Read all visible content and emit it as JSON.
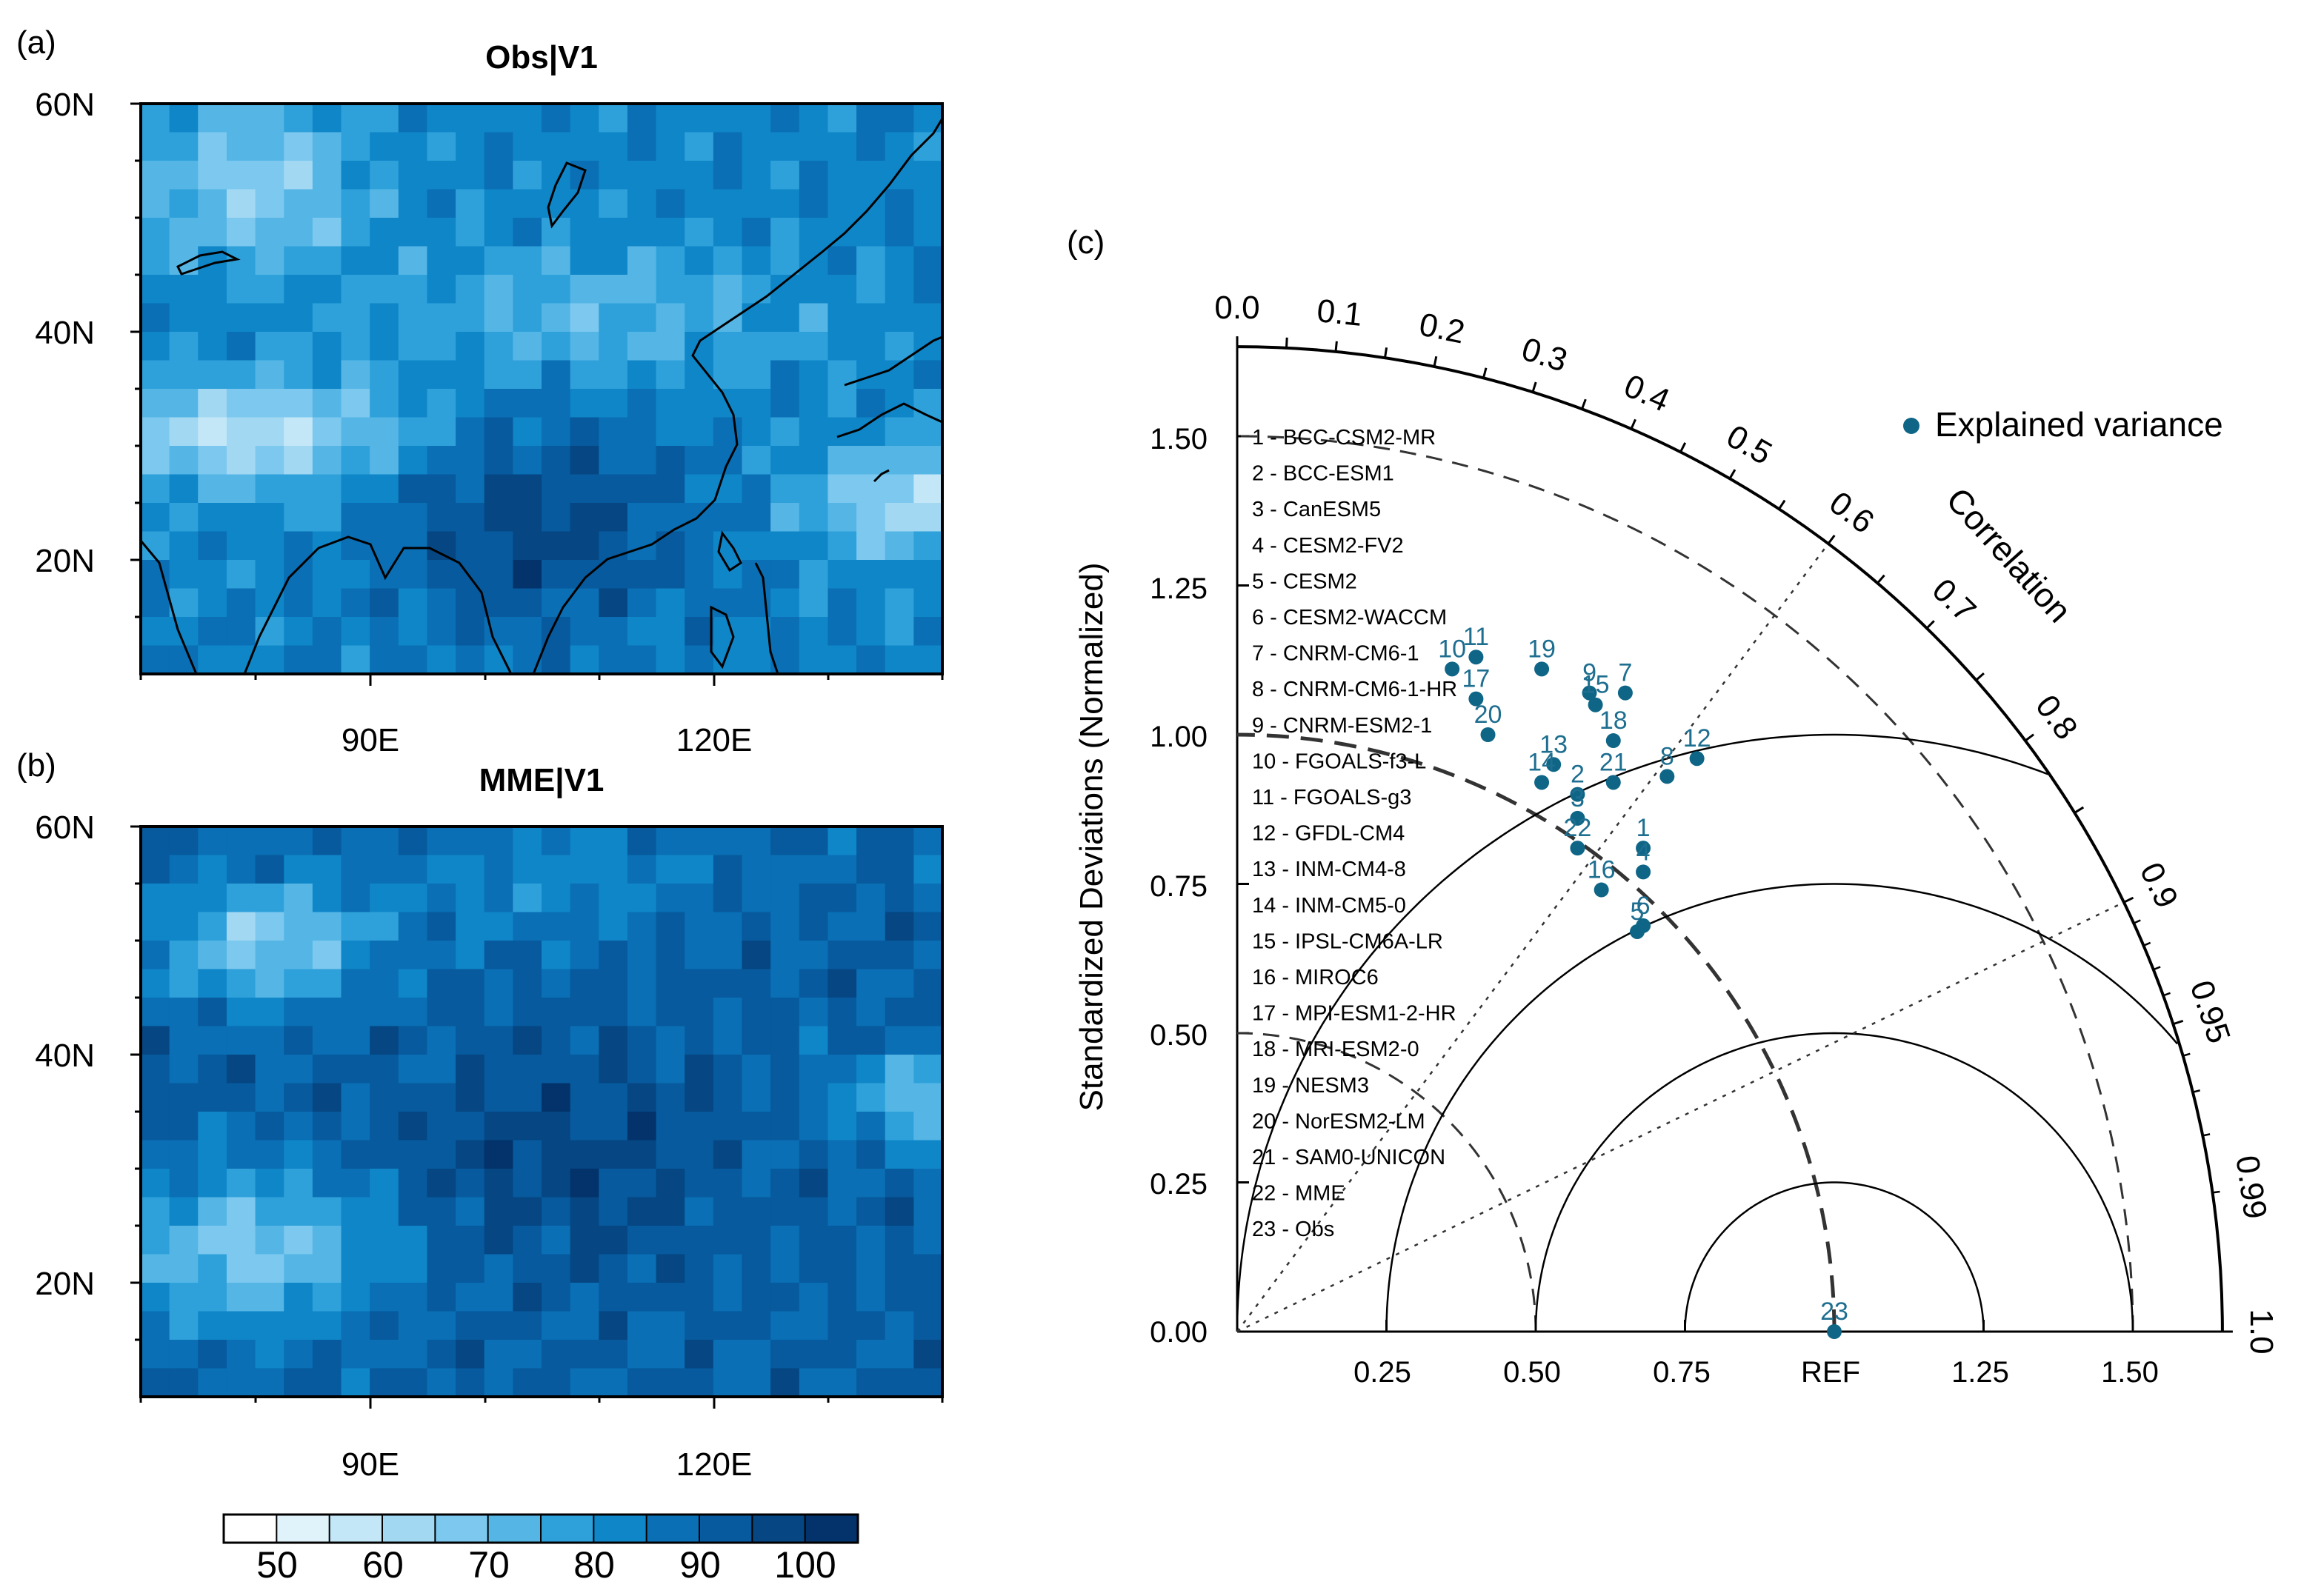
{
  "panels": {
    "a": {
      "label": "(a)",
      "title": "Obs|V1"
    },
    "b": {
      "label": "(b)",
      "title": "MME|V1"
    },
    "c": {
      "label": "(c)"
    }
  },
  "map_axes": {
    "lat_ticks": [
      "60N",
      "40N",
      "20N"
    ],
    "lon_ticks": [
      "90E",
      "120E"
    ]
  },
  "colorbar": {
    "labels": [
      "50",
      "60",
      "70",
      "80",
      "90",
      "100"
    ],
    "colors": [
      "#ffffff",
      "#e0f3fb",
      "#c3e7f7",
      "#a3d8f3",
      "#7cc8ef",
      "#55b6e6",
      "#2ea1da",
      "#0f86c8",
      "#0a6fb4",
      "#075a9d",
      "#054683",
      "#03336a"
    ]
  },
  "chart_data": {
    "type": "scatter",
    "subtype": "taylor-diagram",
    "ylabel": "Standardized Deviations (Normalized)",
    "correlation_label": "Correlation",
    "legend": {
      "label": "Explained variance",
      "color": "#0e6586",
      "position": "top-right"
    },
    "x_tick_labels": [
      "0.25",
      "0.50",
      "0.75",
      "REF",
      "1.25",
      "1.50"
    ],
    "y_tick_labels": [
      "0.00",
      "0.25",
      "0.50",
      "0.75",
      "1.00",
      "1.25",
      "1.50"
    ],
    "std_max": 1.65,
    "correlation_ticks": [
      "0.0",
      "0.1",
      "0.2",
      "0.3",
      "0.4",
      "0.5",
      "0.6",
      "0.7",
      "0.8",
      "0.9",
      "0.95",
      "0.99",
      "1.0"
    ],
    "models": [
      "1 - BCC-CSM2-MR",
      "2 - BCC-ESM1",
      "3 - CanESM5",
      "4 - CESM2-FV2",
      "5 - CESM2",
      "6 - CESM2-WACCM",
      "7 - CNRM-CM6-1",
      "8 - CNRM-CM6-1-HR",
      "9 - CNRM-ESM2-1",
      "10 - FGOALS-f3-L",
      "11 - FGOALS-g3",
      "12 - GFDL-CM4",
      "13 - INM-CM4-8",
      "14 - INM-CM5-0",
      "15 - IPSL-CM6A-LR",
      "16 - MIROC6",
      "17 - MPI-ESM1-2-HR",
      "18 - MRI-ESM2-0",
      "19 - NESM3",
      "20 - NorESM2-LM",
      "21 - SAM0-UNICON",
      "22 - MME",
      "23 - Obs"
    ],
    "points": [
      {
        "id": "1",
        "x": 0.68,
        "y": 0.81
      },
      {
        "id": "2",
        "x": 0.57,
        "y": 0.9
      },
      {
        "id": "3",
        "x": 0.57,
        "y": 0.86
      },
      {
        "id": "4",
        "x": 0.68,
        "y": 0.77
      },
      {
        "id": "5",
        "x": 0.67,
        "y": 0.67
      },
      {
        "id": "6",
        "x": 0.68,
        "y": 0.68
      },
      {
        "id": "7",
        "x": 0.65,
        "y": 1.07
      },
      {
        "id": "8",
        "x": 0.72,
        "y": 0.93
      },
      {
        "id": "9",
        "x": 0.59,
        "y": 1.07
      },
      {
        "id": "10",
        "x": 0.36,
        "y": 1.11
      },
      {
        "id": "11",
        "x": 0.4,
        "y": 1.13
      },
      {
        "id": "12",
        "x": 0.77,
        "y": 0.96
      },
      {
        "id": "13",
        "x": 0.53,
        "y": 0.95
      },
      {
        "id": "14",
        "x": 0.51,
        "y": 0.92
      },
      {
        "id": "15",
        "x": 0.6,
        "y": 1.05
      },
      {
        "id": "16",
        "x": 0.61,
        "y": 0.74
      },
      {
        "id": "17",
        "x": 0.4,
        "y": 1.06
      },
      {
        "id": "18",
        "x": 0.63,
        "y": 0.99
      },
      {
        "id": "19",
        "x": 0.51,
        "y": 1.11
      },
      {
        "id": "20",
        "x": 0.42,
        "y": 1.0
      },
      {
        "id": "21",
        "x": 0.63,
        "y": 0.92
      },
      {
        "id": "22",
        "x": 0.57,
        "y": 0.81
      },
      {
        "id": "23",
        "x": 1.0,
        "y": 0.0
      }
    ]
  }
}
